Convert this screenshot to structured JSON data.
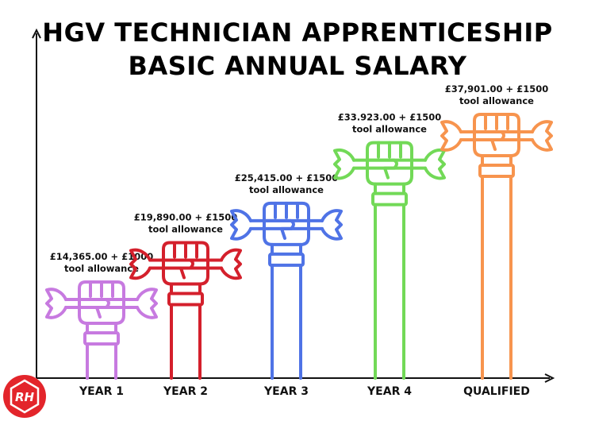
{
  "title_line1": "HGV TECHNICIAN APPRENTICESHIP",
  "title_line2": "BASIC ANNUAL SALARY",
  "logo_text": "RH",
  "colors": {
    "axis": "#111111",
    "logo_red": "#e3252b"
  },
  "chart_data": {
    "type": "bar",
    "title": "HGV TECHNICIAN APPRENTICESHIP BASIC ANNUAL SALARY",
    "xlabel": "",
    "ylabel": "",
    "categories": [
      "YEAR 1",
      "YEAR 2",
      "YEAR 3",
      "YEAR 4",
      "QUALIFIED"
    ],
    "values": [
      14365,
      19890,
      25415,
      33923,
      37901
    ],
    "tool_allowance": [
      1000,
      1500,
      1500,
      1500,
      1500
    ],
    "label_line1": [
      "£14,365.00 + £1000",
      "£19,890.00 + £1500",
      "£25,415.00 + £1500",
      "£33.923.00 + £1500",
      "£37,901.00 + £1500"
    ],
    "label_line2": [
      "tool allowance",
      "tool allowance",
      "tool allowance",
      "tool allowance",
      "tool allowance"
    ],
    "series_colors": [
      "#c77ae0",
      "#d4202c",
      "#4f73e6",
      "#72d957",
      "#f7944e"
    ],
    "mark_style": "raised-fist-holding-wrench",
    "grid": false
  }
}
